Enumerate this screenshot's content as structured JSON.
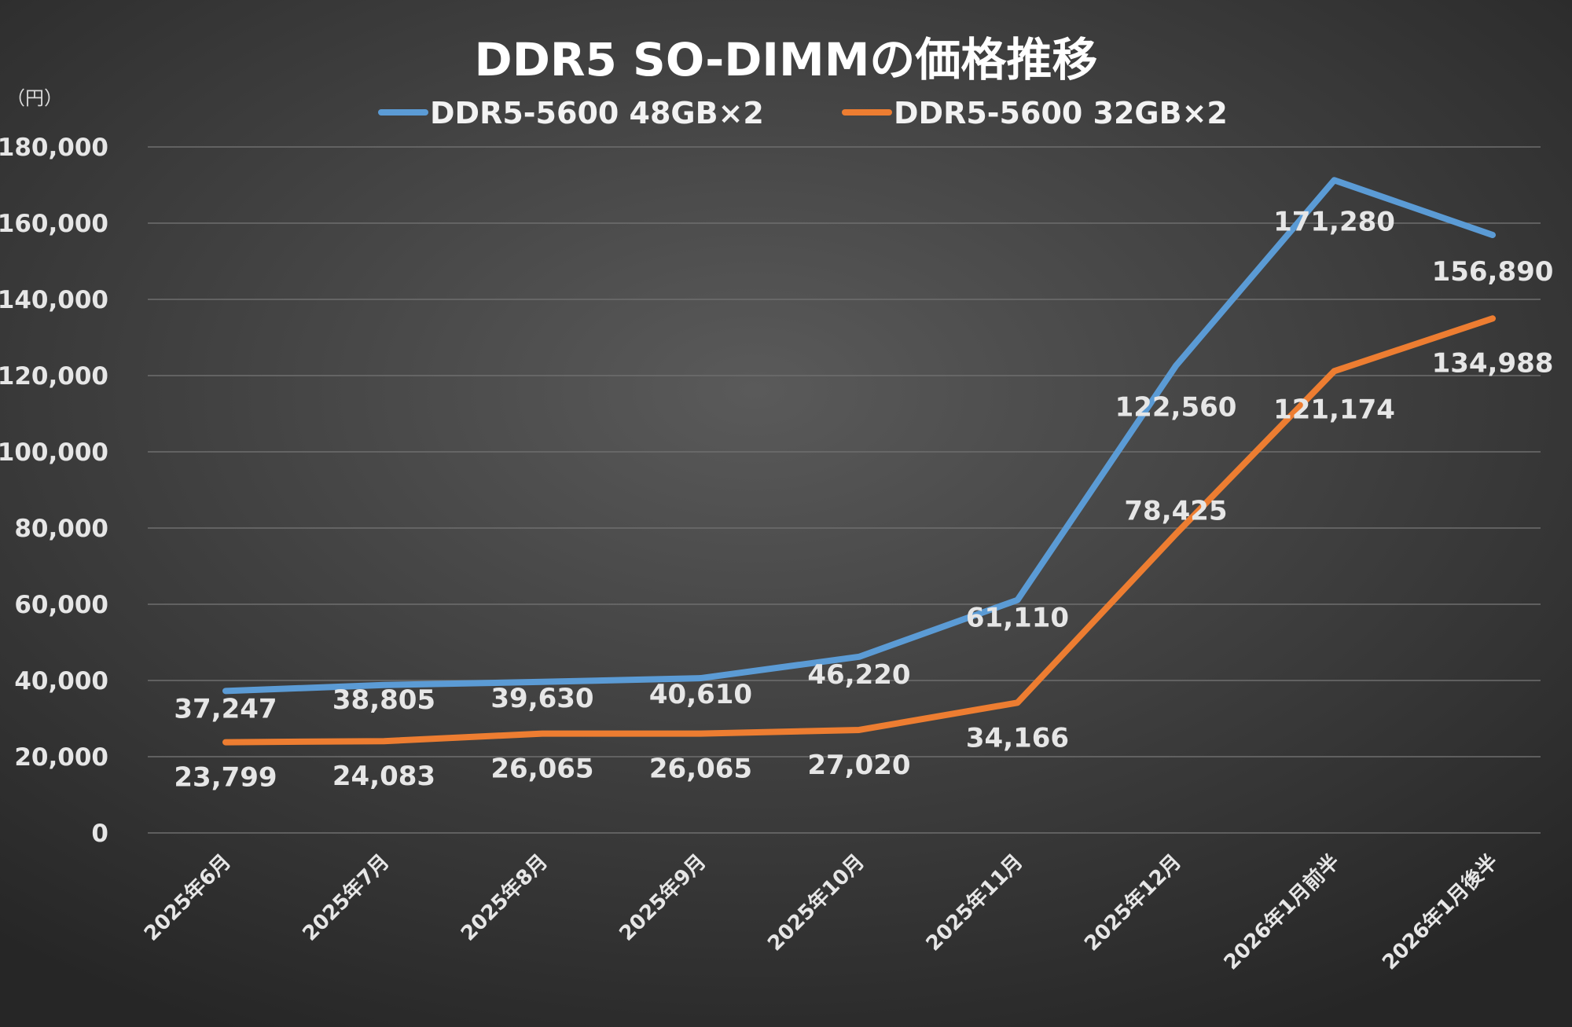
{
  "chart_data": {
    "type": "line",
    "title": "DDR5 SO-DIMMの価格推移",
    "ylabel": "（円）",
    "ylim": [
      0,
      180000
    ],
    "yticks": [
      0,
      20000,
      40000,
      60000,
      80000,
      100000,
      120000,
      140000,
      160000,
      180000
    ],
    "ytick_labels": [
      "0",
      "20,000",
      "40,000",
      "60,000",
      "80,000",
      "100,000",
      "120,000",
      "140,000",
      "160,000",
      "180,000"
    ],
    "categories": [
      "2025年6月",
      "2025年7月",
      "2025年8月",
      "2025年9月",
      "2025年10月",
      "2025年11月",
      "2025年12月",
      "2026年1月前半",
      "2026年1月後半"
    ],
    "grid": true,
    "legend": "top",
    "series": [
      {
        "name": "DDR5-5600 48GB×2",
        "color": "#5b9bd5",
        "values": [
          37247,
          38805,
          39630,
          40610,
          46220,
          61110,
          122560,
          171280,
          156890
        ],
        "labels": [
          "37,247",
          "38,805",
          "39,630",
          "40,610",
          "46,220",
          "61,110",
          "122,560",
          "171,280",
          "156,890"
        ]
      },
      {
        "name": "DDR5-5600 32GB×2",
        "color": "#ed7d31",
        "values": [
          23799,
          24083,
          26065,
          26065,
          27020,
          34166,
          78425,
          121174,
          134988
        ],
        "labels": [
          "23,799",
          "24,083",
          "26,065",
          "26,065",
          "27,020",
          "34,166",
          "78,425",
          "121,174",
          "134,988"
        ]
      }
    ]
  }
}
